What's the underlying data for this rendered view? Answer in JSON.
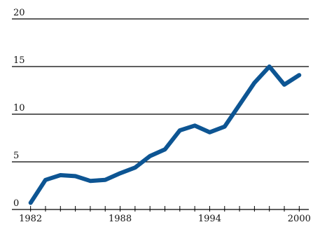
{
  "chart_data": {
    "type": "line",
    "title": "",
    "xlabel": "",
    "ylabel": "",
    "x": [
      1982,
      1983,
      1984,
      1985,
      1986,
      1987,
      1988,
      1989,
      1990,
      1991,
      1992,
      1993,
      1994,
      1995,
      1996,
      1997,
      1998,
      1999,
      2000
    ],
    "series": [
      {
        "values": [
          0.7,
          3.1,
          3.6,
          3.5,
          3.0,
          3.1,
          3.8,
          4.4,
          5.6,
          6.3,
          8.3,
          8.8,
          8.1,
          8.7,
          11.0,
          13.3,
          15.0,
          13.1,
          14.1
        ]
      }
    ],
    "xlim": [
      1981.5,
      2000.5
    ],
    "ylim": [
      0,
      20
    ],
    "yticks": [
      "0",
      "5",
      "10",
      "15",
      "20"
    ],
    "xticks": [
      "1982",
      "1988",
      "1994",
      "2000"
    ],
    "grid": "horizontal",
    "line_color": "#0d5593",
    "grid_color": "#000000"
  }
}
